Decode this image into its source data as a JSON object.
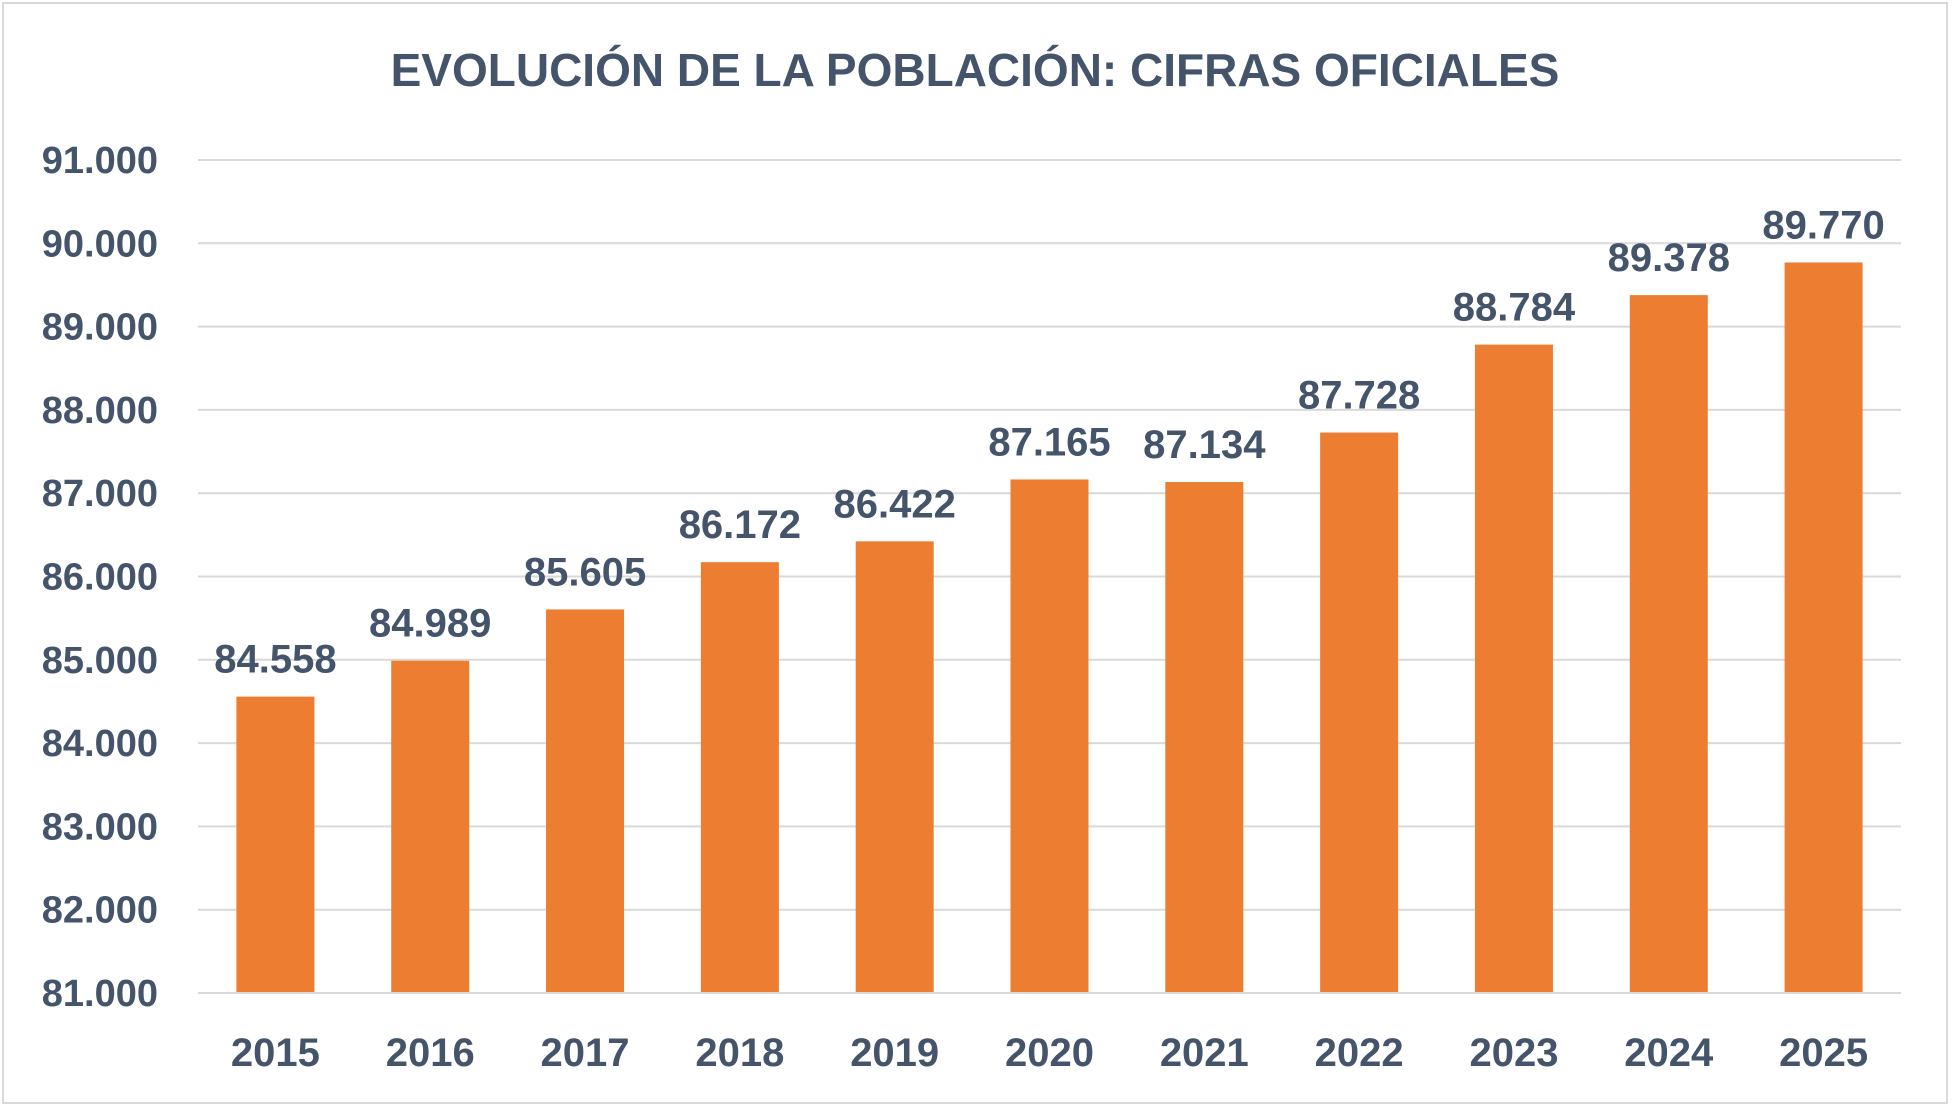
{
  "chart_data": {
    "type": "bar",
    "title": "EVOLUCIÓN DE LA POBLACIÓN: CIFRAS OFICIALES",
    "xlabel": "",
    "ylabel": "",
    "categories": [
      "2015",
      "2016",
      "2017",
      "2018",
      "2019",
      "2020",
      "2021",
      "2022",
      "2023",
      "2024",
      "2025"
    ],
    "values": [
      84558,
      84989,
      85605,
      86172,
      86422,
      87165,
      87134,
      87728,
      88784,
      89378,
      89770
    ],
    "value_labels": [
      "84.558",
      "84.989",
      "85.605",
      "86.172",
      "86.422",
      "87.165",
      "87.134",
      "87.728",
      "88.784",
      "89.378",
      "89.770"
    ],
    "ylim": [
      81000,
      91000
    ],
    "yticks": [
      81000,
      82000,
      83000,
      84000,
      85000,
      86000,
      87000,
      88000,
      89000,
      90000,
      91000
    ],
    "ytick_labels": [
      "81.000",
      "82.000",
      "83.000",
      "84.000",
      "85.000",
      "86.000",
      "87.000",
      "88.000",
      "89.000",
      "90.000",
      "91.000"
    ],
    "grid": true,
    "legend": "none",
    "bar_color": "#ed7d31",
    "text_color": "#44546a",
    "grid_color": "#d9d9d9"
  }
}
